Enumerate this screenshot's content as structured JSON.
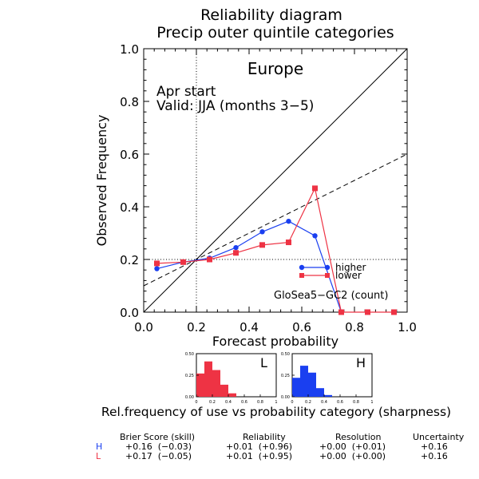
{
  "title": "Reliability diagram",
  "subtitle": "Precip outer quintile categories",
  "region": "Europe",
  "annotation_start": "Apr start",
  "annotation_valid": "Valid: JJA (months 3−5)",
  "model_label": "GloSea5−GC2 (count)",
  "sharpness_caption": "Rel.frequency of use vs probability category (sharpness)",
  "colors": {
    "higher": "#1a3ff0",
    "lower": "#ee3344"
  },
  "chart_data": [
    {
      "type": "line",
      "xlabel": "Forecast probability",
      "ylabel": "Observed Frequency",
      "xlim": [
        0.0,
        1.0
      ],
      "ylim": [
        0.0,
        1.0
      ],
      "x_ticks": [
        "0.0",
        "0.2",
        "0.4",
        "0.6",
        "0.8",
        "1.0"
      ],
      "y_ticks": [
        "0.0",
        "0.2",
        "0.4",
        "0.6",
        "0.8",
        "1.0"
      ],
      "legend_position": "bottom-right",
      "reference_lines": {
        "perfect_reliability": [
          [
            0,
            0
          ],
          [
            1,
            1
          ]
        ],
        "no_skill": [
          [
            0,
            0.1
          ],
          [
            1,
            0.6
          ]
        ],
        "climatology_x": 0.2,
        "climatology_y": 0.2
      },
      "series": [
        {
          "name": "higher",
          "x": [
            0.05,
            0.15,
            0.25,
            0.35,
            0.45,
            0.55,
            0.65,
            0.75
          ],
          "y": [
            0.165,
            0.19,
            0.205,
            0.245,
            0.305,
            0.345,
            0.29,
            0.0
          ]
        },
        {
          "name": "lower",
          "x": [
            0.05,
            0.15,
            0.25,
            0.35,
            0.45,
            0.55,
            0.65,
            0.75,
            0.85,
            0.95
          ],
          "y": [
            0.185,
            0.19,
            0.2,
            0.225,
            0.255,
            0.265,
            0.47,
            0.0,
            0.0,
            0.0
          ]
        }
      ]
    },
    {
      "type": "bar",
      "label": "L",
      "categories": [
        "0.05",
        "0.15",
        "0.25",
        "0.35",
        "0.45"
      ],
      "values": [
        0.27,
        0.41,
        0.31,
        0.14,
        0.04
      ],
      "ylim": [
        0,
        0.5
      ],
      "y_ticks": [
        "0.00",
        "0.25",
        "0.50"
      ],
      "x_ticks": [
        "0",
        "0.2",
        "0.4",
        "0.6",
        "0.8",
        "1"
      ]
    },
    {
      "type": "bar",
      "label": "H",
      "categories": [
        "0.05",
        "0.15",
        "0.25",
        "0.35",
        "0.45"
      ],
      "values": [
        0.22,
        0.36,
        0.28,
        0.1,
        0.02
      ],
      "ylim": [
        0,
        0.5
      ],
      "y_ticks": [
        "0.00",
        "0.25",
        "0.50"
      ],
      "x_ticks": [
        "0",
        "0.2",
        "0.4",
        "0.6",
        "0.8",
        "1"
      ]
    },
    {
      "type": "table",
      "columns": [
        "Brier Score (skill)",
        "Reliability",
        "Resolution",
        "Uncertainty"
      ],
      "rows": [
        {
          "key": "H",
          "cells": [
            "+0.16  (−0.03)",
            "+0.01  (+0.96)",
            "+0.00  (+0.01)",
            "+0.16"
          ]
        },
        {
          "key": "L",
          "cells": [
            "+0.17  (−0.05)",
            "+0.01  (+0.95)",
            "+0.00  (+0.00)",
            "+0.16"
          ]
        }
      ]
    }
  ]
}
